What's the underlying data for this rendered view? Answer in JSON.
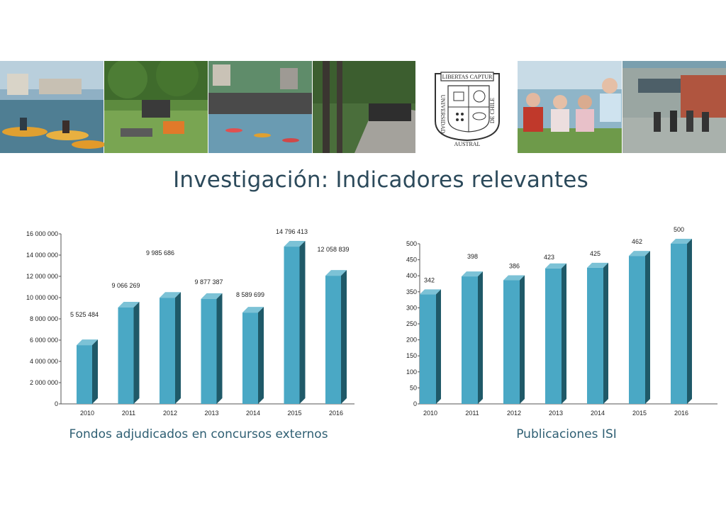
{
  "page": {
    "title": "Investigación: Indicadores relevantes"
  },
  "banner": {
    "seal_text_top": "LIBERTAS CAPTUR",
    "seal_text_left": "UNIVERSIDAD",
    "seal_text_bottom": "AUSTRAL",
    "seal_text_right": "DE CHILE"
  },
  "colors": {
    "bar_front": "#4aa8c5",
    "bar_side": "#1f5968",
    "bar_top": "#7cc2d6",
    "title": "#2c4a5b",
    "caption": "#2f5f73"
  },
  "chart_data": [
    {
      "type": "bar",
      "title": "",
      "caption": "Fondos adjudicados en concursos externos",
      "categories": [
        "2010",
        "2011",
        "2012",
        "2013",
        "2014",
        "2015",
        "2016"
      ],
      "values": [
        5525484,
        9066269,
        9985686,
        9877387,
        8589699,
        14796413,
        12058839
      ],
      "data_labels": [
        "5 525 484",
        "9 066 269",
        "9 985 686",
        "9 877 387",
        "8 589 699",
        "14 796 413",
        "12 058 839"
      ],
      "yticks": [
        "0",
        "2 000 000",
        "4 000 000",
        "6 000 000",
        "8 000 000",
        "10 000 000",
        "12 000 000",
        "14 000 000",
        "16 000 000"
      ],
      "ylim": [
        0,
        16000000
      ],
      "grid": false,
      "style": "3d-column"
    },
    {
      "type": "bar",
      "title": "",
      "caption": "Publicaciones ISI",
      "categories": [
        "2010",
        "2011",
        "2012",
        "2013",
        "2014",
        "2015",
        "2016"
      ],
      "values": [
        342,
        398,
        386,
        423,
        425,
        462,
        500
      ],
      "data_labels": [
        "342",
        "398",
        "386",
        "423",
        "425",
        "462",
        "500"
      ],
      "yticks": [
        "0",
        "50",
        "100",
        "150",
        "200",
        "250",
        "300",
        "350",
        "400",
        "450",
        "500"
      ],
      "ylim": [
        0,
        500
      ],
      "grid": false,
      "style": "3d-column"
    }
  ]
}
